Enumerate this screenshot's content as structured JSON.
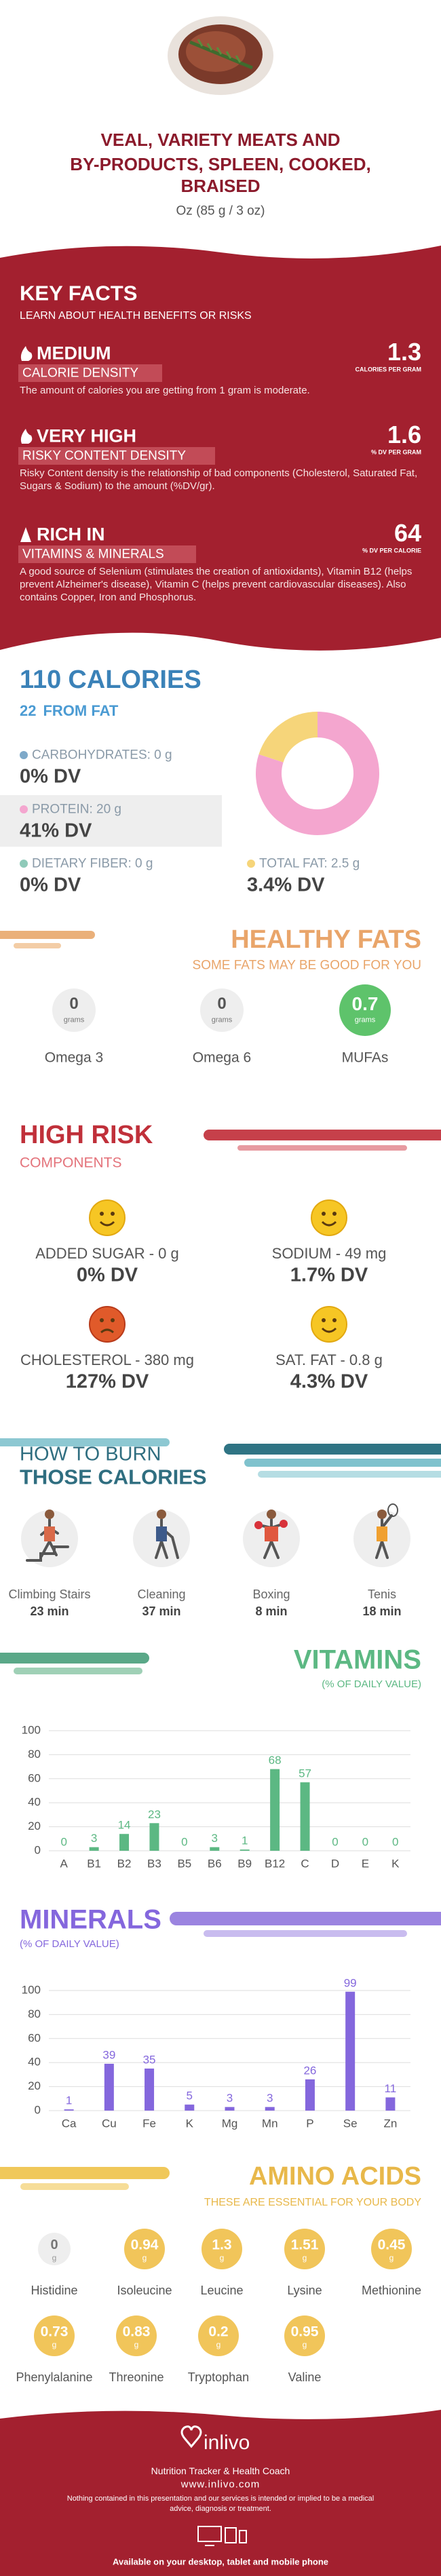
{
  "header": {
    "title_lines": [
      "VEAL, VARIETY MEATS AND",
      "BY-PRODUCTS, SPLEEN, COOKED,",
      "BRAISED"
    ],
    "serving": "Oz (85 g / 3 oz)"
  },
  "key_facts": {
    "title": "KEY FACTS",
    "subtitle": "LEARN ABOUT HEALTH BENEFITS OR RISKS",
    "items": [
      {
        "level": "MEDIUM",
        "label": "CALORIE DENSITY",
        "value": 1.3,
        "unit": "CALORIES PER GRAM",
        "text": "The amount of calories you are getting from 1 gram is moderate."
      },
      {
        "level": "VERY HIGH",
        "label": "RISKY CONTENT DENSITY",
        "value": 1.6,
        "unit": "% DV PER GRAM",
        "text": "Risky Content density is the relationship of bad components (Cholesterol, Saturated Fat, Sugars & Sodium) to the amount (%DV/gr)."
      },
      {
        "level": "RICH  IN",
        "label": "VITAMINS & MINERALS",
        "value": 64,
        "unit": "% DV PER CALORIE",
        "text": "A good source of Selenium (stimulates the creation of antioxidants), Vitamin B12 (helps prevent Alzheimer's disease), Vitamin C (helps prevent cardiovascular diseases). Also contains Copper, Iron and Phosphorus."
      }
    ]
  },
  "calories": {
    "value": 110,
    "label": "CALORIES",
    "fat_value": 22,
    "fat_label": "FROM FAT",
    "nutrients": [
      {
        "label": "CARBOHYDRATES: 0 g",
        "dv": "0% DV",
        "color": "#7ea9c9"
      },
      {
        "label": "PROTEIN: 20 g",
        "dv": "41% DV",
        "color": "#f4a6cf"
      },
      {
        "label": "DIETARY FIBER: 0 g",
        "dv": "0% DV",
        "color": "#8fcab9"
      },
      {
        "label": "TOTAL FAT: 2.5 g",
        "dv": "3.4% DV",
        "color": "#f6d57a"
      }
    ]
  },
  "healthy_fats": {
    "title": "HEALTHY FATS",
    "subtitle": "SOME FATS MAY BE GOOD FOR YOU",
    "unit": "grams",
    "items": [
      {
        "name": "Omega 3",
        "value": 0
      },
      {
        "name": "Omega 6",
        "value": 0
      },
      {
        "name": "MUFAs",
        "value": 0.7
      }
    ]
  },
  "high_risk": {
    "title": "HIGH RISK",
    "subtitle": "COMPONENTS",
    "items": [
      {
        "label": "ADDED SUGAR - 0 g",
        "dv": "0% DV"
      },
      {
        "label": "SODIUM - 49 mg",
        "dv": "1.7% DV"
      },
      {
        "label": "CHOLESTEROL - 380 mg",
        "dv": "127% DV"
      },
      {
        "label": "SAT. FAT - 0.8 g",
        "dv": "4.3% DV"
      }
    ]
  },
  "burn": {
    "title_1": "HOW TO BURN",
    "title_2": "THOSE CALORIES",
    "activities": [
      {
        "name": "Climbing Stairs",
        "time": "23 min"
      },
      {
        "name": "Cleaning",
        "time": "37 min"
      },
      {
        "name": "Boxing",
        "time": "8 min"
      },
      {
        "name": "Tenis",
        "time": "18 min"
      }
    ]
  },
  "chart_data": [
    {
      "type": "bar",
      "title": "VITAMINS",
      "subtitle": "(% OF DAILY VALUE)",
      "color": "#5cb883",
      "categories": [
        "A",
        "B1",
        "B2",
        "B3",
        "B5",
        "B6",
        "B9",
        "B12",
        "C",
        "D",
        "E",
        "K"
      ],
      "values": [
        0,
        3,
        14,
        23,
        0,
        3,
        1,
        68,
        57,
        0,
        0,
        0
      ],
      "ylim": [
        0,
        100
      ],
      "yticks": [
        0,
        20,
        40,
        60,
        80,
        100
      ],
      "grid": true
    },
    {
      "type": "bar",
      "title": "MINERALS",
      "subtitle": "(% OF DAILY VALUE)",
      "color": "#8467dd",
      "categories": [
        "Ca",
        "Cu",
        "Fe",
        "K",
        "Mg",
        "Mn",
        "P",
        "Se",
        "Zn"
      ],
      "values": [
        1,
        39,
        35,
        5,
        3,
        3,
        26,
        99,
        11
      ],
      "ylim": [
        0,
        100
      ],
      "yticks": [
        0,
        20,
        40,
        60,
        80,
        100
      ],
      "grid": true
    }
  ],
  "amino_acids": {
    "title": "AMINO ACIDS",
    "subtitle": "THESE ARE ESSENTIAL FOR YOUR BODY",
    "unit": "g",
    "items": [
      {
        "name": "Histidine",
        "value": 0
      },
      {
        "name": "Isoleucine",
        "value": 0.94
      },
      {
        "name": "Leucine",
        "value": 1.3
      },
      {
        "name": "Lysine",
        "value": 1.51
      },
      {
        "name": "Methionine",
        "value": 0.45
      },
      {
        "name": "Phenylalanine",
        "value": 0.73
      },
      {
        "name": "Threonine",
        "value": 0.83
      },
      {
        "name": "Tryptophan",
        "value": 0.2
      },
      {
        "name": "Valine",
        "value": 0.95
      }
    ]
  },
  "footer": {
    "brand": "inlivo",
    "tagline": "Nutrition Tracker & Health Coach",
    "url": "www.inlivo.com",
    "disclaimer": "Nothing contained in this presentation and our services is intended or implied to be a medical advice, diagnosis or treatment.",
    "available": "Available on your desktop, tablet and mobile phone"
  }
}
